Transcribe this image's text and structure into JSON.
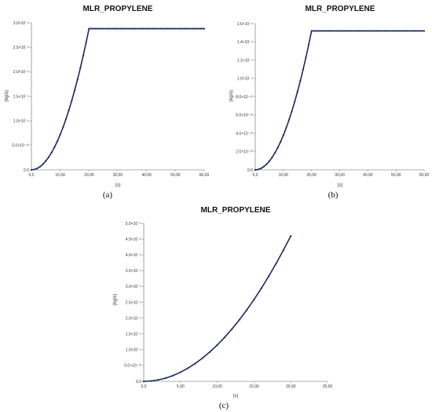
{
  "colors": {
    "series": "#1c2d5c",
    "axis": "#666666"
  },
  "chart_data": [
    {
      "id": "a",
      "type": "line",
      "title": "MLR_PROPYLENE",
      "caption": "(a)",
      "xlabel": "(s)",
      "ylabel": "(kg/s)",
      "xlim": [
        0,
        60
      ],
      "ylim": [
        0,
        3e-09
      ],
      "x_ticks": [
        "0,0",
        "10,00",
        "20,00",
        "30,00",
        "40,00",
        "50,00",
        "60,00"
      ],
      "y_ticks": [
        "0.0",
        "5.0×10⁻¹⁰",
        "1.0×10⁻⁹",
        "1.5×10⁻⁹",
        "2.0×10⁻⁹",
        "2.5×10⁻⁹",
        "3.0×10⁻⁹"
      ],
      "series": [
        {
          "x": [
            0,
            1,
            2,
            3,
            4,
            5,
            6,
            7,
            8,
            9,
            10,
            11,
            12,
            13,
            14,
            15,
            16,
            17,
            18,
            19,
            20,
            21,
            22,
            23,
            24,
            25,
            26,
            27,
            28,
            29,
            30,
            31,
            32,
            33,
            34,
            35,
            36,
            37,
            38,
            39,
            40,
            41,
            42,
            43,
            44,
            45,
            46,
            47,
            48,
            49,
            50,
            51,
            52,
            53,
            54,
            55,
            56,
            57,
            58,
            59,
            60
          ],
          "y": [
            0,
            7.2e-12,
            2.88e-11,
            6.48e-11,
            1.152e-10,
            1.8e-10,
            2.592e-10,
            3.528e-10,
            4.608e-10,
            5.832e-10,
            7.2e-10,
            8.712e-10,
            1.0368e-09,
            1.2168e-09,
            1.4112e-09,
            1.62e-09,
            1.8432e-09,
            2.0808e-09,
            2.3328e-09,
            2.5992e-09,
            2.88e-09,
            2.88e-09,
            2.88e-09,
            2.88e-09,
            2.88e-09,
            2.88e-09,
            2.88e-09,
            2.88e-09,
            2.88e-09,
            2.88e-09,
            2.88e-09,
            2.88e-09,
            2.88e-09,
            2.88e-09,
            2.88e-09,
            2.88e-09,
            2.88e-09,
            2.88e-09,
            2.88e-09,
            2.88e-09,
            2.88e-09,
            2.88e-09,
            2.88e-09,
            2.88e-09,
            2.88e-09,
            2.88e-09,
            2.88e-09,
            2.88e-09,
            2.88e-09,
            2.88e-09,
            2.88e-09,
            2.88e-09,
            2.88e-09,
            2.88e-09,
            2.88e-09,
            2.88e-09,
            2.88e-09,
            2.88e-09,
            2.88e-09,
            2.88e-09,
            2.88e-09
          ]
        }
      ]
    },
    {
      "id": "b",
      "type": "line",
      "title": "MLR_PROPYLENE",
      "caption": "(b)",
      "xlabel": "(s)",
      "ylabel": "(kg/s)",
      "xlim": [
        0,
        60
      ],
      "ylim": [
        0,
        1.6e-09
      ],
      "x_ticks": [
        "0,0",
        "10,00",
        "20,00",
        "30,00",
        "40,00",
        "50,00",
        "60,00"
      ],
      "y_ticks": [
        "0.0",
        "2.0×10⁻¹⁰",
        "4.0×10⁻¹⁰",
        "6.0×10⁻¹⁰",
        "8.0×10⁻¹⁰",
        "1.0×10⁻⁹",
        "1.2×10⁻⁹",
        "1.4×10⁻⁹",
        "1.6×10⁻⁹"
      ],
      "series": [
        {
          "x": [
            0,
            1,
            2,
            3,
            4,
            5,
            6,
            7,
            8,
            9,
            10,
            11,
            12,
            13,
            14,
            15,
            16,
            17,
            18,
            19,
            20,
            21,
            22,
            23,
            24,
            25,
            26,
            27,
            28,
            29,
            30,
            31,
            32,
            33,
            34,
            35,
            36,
            37,
            38,
            39,
            40,
            41,
            42,
            43,
            44,
            45,
            46,
            47,
            48,
            49,
            50,
            51,
            52,
            53,
            54,
            55,
            56,
            57,
            58,
            59,
            60
          ],
          "y": [
            0,
            3.8e-12,
            1.52e-11,
            3.42e-11,
            6.08e-11,
            9.5e-11,
            1.368e-10,
            1.862e-10,
            2.432e-10,
            3.078e-10,
            3.8e-10,
            4.598e-10,
            5.472e-10,
            6.422e-10,
            7.448e-10,
            8.55e-10,
            9.728e-10,
            1.0982e-09,
            1.2312e-09,
            1.3718e-09,
            1.52e-09,
            1.52e-09,
            1.52e-09,
            1.52e-09,
            1.52e-09,
            1.52e-09,
            1.52e-09,
            1.52e-09,
            1.52e-09,
            1.52e-09,
            1.52e-09,
            1.52e-09,
            1.52e-09,
            1.52e-09,
            1.52e-09,
            1.52e-09,
            1.52e-09,
            1.52e-09,
            1.52e-09,
            1.52e-09,
            1.52e-09,
            1.52e-09,
            1.52e-09,
            1.52e-09,
            1.52e-09,
            1.52e-09,
            1.52e-09,
            1.52e-09,
            1.52e-09,
            1.52e-09,
            1.52e-09,
            1.52e-09,
            1.52e-09,
            1.52e-09,
            1.52e-09,
            1.52e-09,
            1.52e-09,
            1.52e-09,
            1.52e-09,
            1.52e-09,
            1.52e-09
          ]
        }
      ]
    },
    {
      "id": "c",
      "type": "line",
      "title": "MLR_PROPYLENE",
      "caption": "(c)",
      "xlabel": "(s)",
      "ylabel": "(kg/s)",
      "xlim": [
        0,
        25
      ],
      "ylim": [
        0,
        5e-09
      ],
      "x_ticks": [
        "0,0",
        "5,00",
        "10,00",
        "15,00",
        "20,00",
        "25,00"
      ],
      "y_ticks": [
        "0.0",
        "5.0×10⁻¹⁰",
        "1.0×10⁻⁹",
        "1.5×10⁻⁹",
        "2.0×10⁻⁹",
        "2.5×10⁻⁹",
        "3.0×10⁻⁹",
        "3.5×10⁻⁹",
        "4.0×10⁻⁹",
        "4.5×10⁻⁹",
        "5.0×10⁻⁹"
      ],
      "series": [
        {
          "x": [
            0,
            1,
            2,
            3,
            4,
            5,
            6,
            7,
            8,
            9,
            10,
            11,
            12,
            13,
            14,
            15,
            16,
            17,
            18,
            19,
            20
          ],
          "y": [
            0,
            1.15e-11,
            4.6e-11,
            1.035e-10,
            1.84e-10,
            2.875e-10,
            4.14e-10,
            5.635e-10,
            7.36e-10,
            9.315e-10,
            1.15e-09,
            1.3915e-09,
            1.656e-09,
            1.9435e-09,
            2.254e-09,
            2.5875e-09,
            2.944e-09,
            3.3235e-09,
            3.726e-09,
            4.1515e-09,
            4.6e-09
          ]
        }
      ]
    }
  ]
}
